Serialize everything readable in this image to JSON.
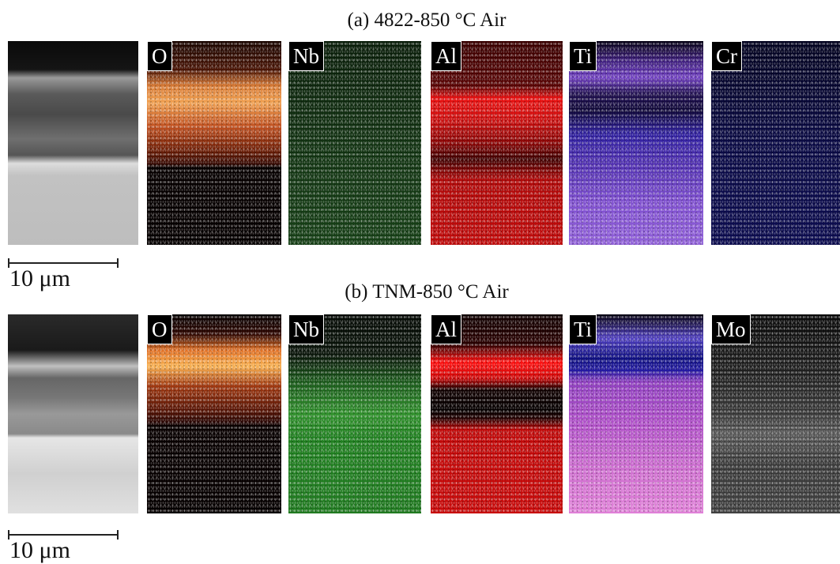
{
  "rows": [
    {
      "title": "(a) 4822-850 °C Air",
      "scale_label": "10 μm",
      "panels": [
        {
          "label": "O"
        },
        {
          "label": "Nb"
        },
        {
          "label": "Al"
        },
        {
          "label": "Ti"
        },
        {
          "label": "Cr"
        }
      ]
    },
    {
      "title": "(b) TNM-850 °C Air",
      "scale_label": "10 μm",
      "panels": [
        {
          "label": "O"
        },
        {
          "label": "Nb"
        },
        {
          "label": "Al"
        },
        {
          "label": "Ti"
        },
        {
          "label": "Mo"
        }
      ]
    }
  ]
}
